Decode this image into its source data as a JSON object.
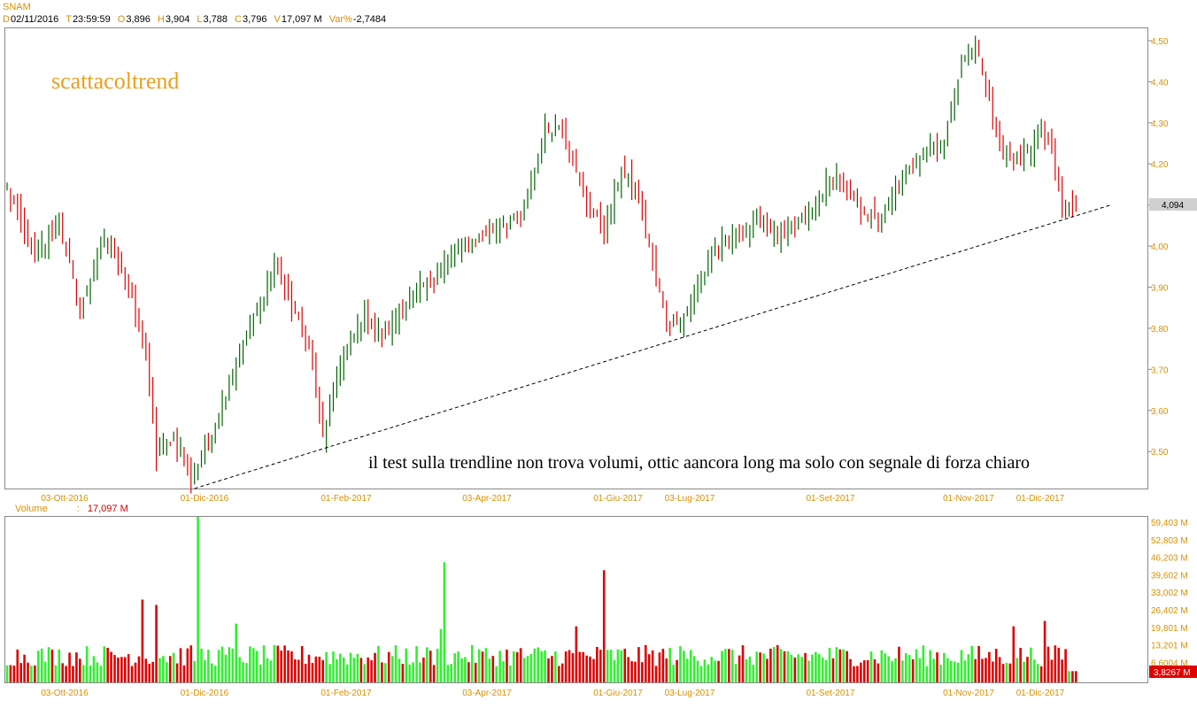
{
  "header": {
    "symbol": "SNAM",
    "fields": [
      {
        "k": "D",
        "v": "02/11/2016"
      },
      {
        "k": "T",
        "v": "23:59:59"
      },
      {
        "k": "O",
        "v": "3,896"
      },
      {
        "k": "H",
        "v": "3,904"
      },
      {
        "k": "L",
        "v": "3,788"
      },
      {
        "k": "C",
        "v": "3,796"
      },
      {
        "k": "V",
        "v": "17,097 M"
      },
      {
        "k": "Var%",
        "v": "-2,7484"
      }
    ]
  },
  "volume_header": {
    "label": "Volume",
    "sep": ":",
    "value": "17,097 M"
  },
  "watermark": "scattacoltrend",
  "annotation": "il test sulla trendline non trova volumi, ottic aancora long ma solo con segnale di forza chiaro",
  "colors": {
    "up": "#006400",
    "down": "#e00000",
    "vol_up": "#33ee33",
    "vol_down": "#dd0000",
    "axis": "#d89000",
    "grid_border": "#808080"
  },
  "chart_data": [
    {
      "type": "ohlc",
      "title": "SNAM",
      "price_ticks": [
        "4,50",
        "4,40",
        "4,30",
        "4,20",
        "4,10",
        "4,00",
        "3,90",
        "3,80",
        "3,70",
        "3,60",
        "3,50"
      ],
      "ylim": [
        3.41,
        4.53
      ],
      "x_tick_labels": [
        "03-Ott-2016",
        "01-Dic-2016",
        "01-Feb-2017",
        "03-Apr-2017",
        "01-Giu-2017",
        "03-Lug-2017",
        "01-Set-2017",
        "01-Nov-2017",
        "01-Dic-2017"
      ],
      "last_value_label": "4,094",
      "anchors": [
        {
          "bar": 0,
          "close": 4.14
        },
        {
          "bar": 8,
          "close": 3.97
        },
        {
          "bar": 15,
          "close": 4.06
        },
        {
          "bar": 21,
          "close": 3.84
        },
        {
          "bar": 28,
          "close": 4.03
        },
        {
          "bar": 33,
          "close": 3.95
        },
        {
          "bar": 40,
          "close": 3.74
        },
        {
          "bar": 43,
          "close": 3.49
        },
        {
          "bar": 48,
          "close": 3.54
        },
        {
          "bar": 53,
          "close": 3.43
        },
        {
          "bar": 58,
          "close": 3.53
        },
        {
          "bar": 66,
          "close": 3.72
        },
        {
          "bar": 73,
          "close": 3.86
        },
        {
          "bar": 77,
          "close": 3.96
        },
        {
          "bar": 80,
          "close": 3.9
        },
        {
          "bar": 87,
          "close": 3.76
        },
        {
          "bar": 91,
          "close": 3.53
        },
        {
          "bar": 96,
          "close": 3.71
        },
        {
          "bar": 103,
          "close": 3.83
        },
        {
          "bar": 108,
          "close": 3.78
        },
        {
          "bar": 113,
          "close": 3.84
        },
        {
          "bar": 120,
          "close": 3.9
        },
        {
          "bar": 127,
          "close": 3.96
        },
        {
          "bar": 135,
          "close": 4.02
        },
        {
          "bar": 143,
          "close": 4.06
        },
        {
          "bar": 148,
          "close": 4.07
        },
        {
          "bar": 155,
          "close": 4.28
        },
        {
          "bar": 160,
          "close": 4.3
        },
        {
          "bar": 166,
          "close": 4.12
        },
        {
          "bar": 172,
          "close": 4.03
        },
        {
          "bar": 177,
          "close": 4.19
        },
        {
          "bar": 182,
          "close": 4.11
        },
        {
          "bar": 186,
          "close": 3.96
        },
        {
          "bar": 190,
          "close": 3.81
        },
        {
          "bar": 196,
          "close": 3.84
        },
        {
          "bar": 203,
          "close": 3.98
        },
        {
          "bar": 210,
          "close": 4.03
        },
        {
          "bar": 217,
          "close": 4.06
        },
        {
          "bar": 224,
          "close": 4.02
        },
        {
          "bar": 232,
          "close": 4.08
        },
        {
          "bar": 238,
          "close": 4.18
        },
        {
          "bar": 245,
          "close": 4.1
        },
        {
          "bar": 251,
          "close": 4.06
        },
        {
          "bar": 258,
          "close": 4.16
        },
        {
          "bar": 265,
          "close": 4.24
        },
        {
          "bar": 270,
          "close": 4.25
        },
        {
          "bar": 275,
          "close": 4.45
        },
        {
          "bar": 279,
          "close": 4.49
        },
        {
          "bar": 283,
          "close": 4.35
        },
        {
          "bar": 287,
          "close": 4.22
        },
        {
          "bar": 292,
          "close": 4.21
        },
        {
          "bar": 298,
          "close": 4.28
        },
        {
          "bar": 301,
          "close": 4.23
        },
        {
          "bar": 304,
          "close": 4.1
        },
        {
          "bar": 308,
          "close": 4.09
        }
      ],
      "trendline": {
        "from_bar": 54,
        "from_price": 3.41,
        "to_bar": 318,
        "to_price": 4.1,
        "style": "dashed"
      }
    },
    {
      "type": "bar",
      "title": "Volume",
      "ylim": [
        0,
        62000000
      ],
      "y_tick_labels": [
        "59,403 M",
        "52,803 M",
        "46,203 M",
        "39,602 M",
        "33,002 M",
        "26,402 M",
        "19,801 M",
        "13,201 M",
        "6,6004 M"
      ],
      "last_value_label": "3,8267 M",
      "spikes": [
        {
          "bar": 39,
          "value": 31000000
        },
        {
          "bar": 43,
          "value": 29000000
        },
        {
          "bar": 55,
          "value": 62000000
        },
        {
          "bar": 66,
          "value": 22000000
        },
        {
          "bar": 125,
          "value": 20000000
        },
        {
          "bar": 126,
          "value": 45000000
        },
        {
          "bar": 164,
          "value": 21000000
        },
        {
          "bar": 172,
          "value": 42000000
        },
        {
          "bar": 290,
          "value": 21000000
        },
        {
          "bar": 299,
          "value": 23000000
        }
      ],
      "typical_range": [
        6000000,
        14000000
      ]
    }
  ]
}
